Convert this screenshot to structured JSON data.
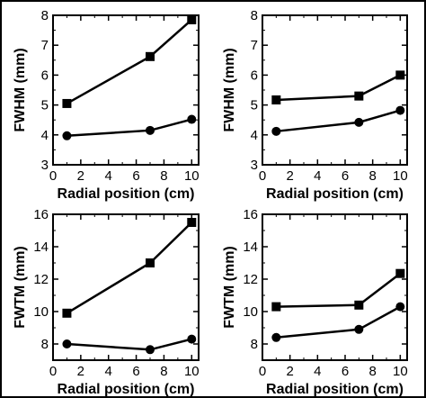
{
  "chart_data": [
    {
      "type": "line",
      "xlabel": "Radial position (cm)",
      "ylabel": "FWHM (mm)",
      "xlim": [
        0,
        10.5
      ],
      "ylim": [
        3,
        8
      ],
      "xticks": [
        "0",
        "2",
        "4",
        "6",
        "8",
        "10"
      ],
      "yticks": [
        "3",
        "4",
        "5",
        "6",
        "7",
        "8"
      ],
      "grid": false,
      "series": [
        {
          "marker": "square",
          "x": [
            1,
            7,
            10
          ],
          "values": [
            5.05,
            6.62,
            7.85
          ]
        },
        {
          "marker": "circle",
          "x": [
            1,
            7,
            10
          ],
          "values": [
            3.97,
            4.15,
            4.52
          ]
        }
      ]
    },
    {
      "type": "line",
      "xlabel": "Radial position (cm)",
      "ylabel": "FWHM (mm)",
      "xlim": [
        0,
        10.5
      ],
      "ylim": [
        3,
        8
      ],
      "xticks": [
        "0",
        "2",
        "4",
        "6",
        "8",
        "10"
      ],
      "yticks": [
        "3",
        "4",
        "5",
        "6",
        "7",
        "8"
      ],
      "grid": false,
      "series": [
        {
          "marker": "square",
          "x": [
            1,
            7,
            10
          ],
          "values": [
            5.17,
            5.3,
            6.0
          ]
        },
        {
          "marker": "circle",
          "x": [
            1,
            7,
            10
          ],
          "values": [
            4.12,
            4.42,
            4.82
          ]
        }
      ]
    },
    {
      "type": "line",
      "xlabel": "Radial position (cm)",
      "ylabel": "FWTM (mm)",
      "xlim": [
        0,
        10.5
      ],
      "ylim": [
        7,
        16
      ],
      "xticks": [
        "0",
        "2",
        "4",
        "6",
        "8",
        "10"
      ],
      "yticks": [
        "8",
        "10",
        "12",
        "14",
        "16"
      ],
      "grid": false,
      "series": [
        {
          "marker": "square",
          "x": [
            1,
            7,
            10
          ],
          "values": [
            9.9,
            13.0,
            15.5
          ]
        },
        {
          "marker": "circle",
          "x": [
            1,
            7,
            10
          ],
          "values": [
            8.0,
            7.65,
            8.3
          ]
        }
      ]
    },
    {
      "type": "line",
      "xlabel": "Radial position (cm)",
      "ylabel": "FWTM (mm)",
      "xlim": [
        0,
        10.5
      ],
      "ylim": [
        7,
        16
      ],
      "xticks": [
        "0",
        "2",
        "4",
        "6",
        "8",
        "10"
      ],
      "yticks": [
        "8",
        "10",
        "12",
        "14",
        "16"
      ],
      "grid": false,
      "series": [
        {
          "marker": "square",
          "x": [
            1,
            7,
            10
          ],
          "values": [
            10.3,
            10.4,
            12.35
          ]
        },
        {
          "marker": "circle",
          "x": [
            1,
            7,
            10
          ],
          "values": [
            8.4,
            8.9,
            10.3
          ]
        }
      ]
    }
  ]
}
